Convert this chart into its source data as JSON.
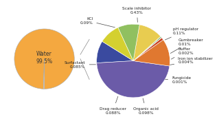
{
  "left_pie": {
    "sizes": [
      99.5,
      0.5
    ],
    "colors": [
      "#F4A840",
      "#DDDDDD"
    ],
    "center_label": "Water\n99.5%",
    "label_fontsize": 5.5
  },
  "right_pie": {
    "slices": [
      {
        "label": "KCl\n0.09%",
        "value": 0.09,
        "color": "#3A4A9F"
      },
      {
        "label": "Scale inhibitor\n0.43%",
        "value": 0.43,
        "color": "#6B5BA8"
      },
      {
        "label": "pH regulator\n0.11%",
        "value": 0.11,
        "color": "#E07830"
      },
      {
        "label": "Gumbreaker\n0.01%",
        "value": 0.01,
        "color": "#C84020"
      },
      {
        "label": "Buffer\n0.002%",
        "value": 0.002,
        "color": "#CC1818"
      },
      {
        "label": "Iron ion stabilizer\n0.004%",
        "value": 0.004,
        "color": "#228B22"
      },
      {
        "label": "Fungicide\n0.001%",
        "value": 0.001,
        "color": "#5C3A10"
      },
      {
        "label": "Organic acid\n0.098%",
        "value": 0.098,
        "color": "#E8CC50"
      },
      {
        "label": "Drag reducer\n0.088%",
        "value": 0.088,
        "color": "#90C060"
      },
      {
        "label": "Surfactant\n0.085%",
        "value": 0.085,
        "color": "#D4D030"
      }
    ],
    "startangle": 148
  },
  "annotation_fontsize": 4.2,
  "connection_lines": true,
  "background_color": "#FFFFFF"
}
